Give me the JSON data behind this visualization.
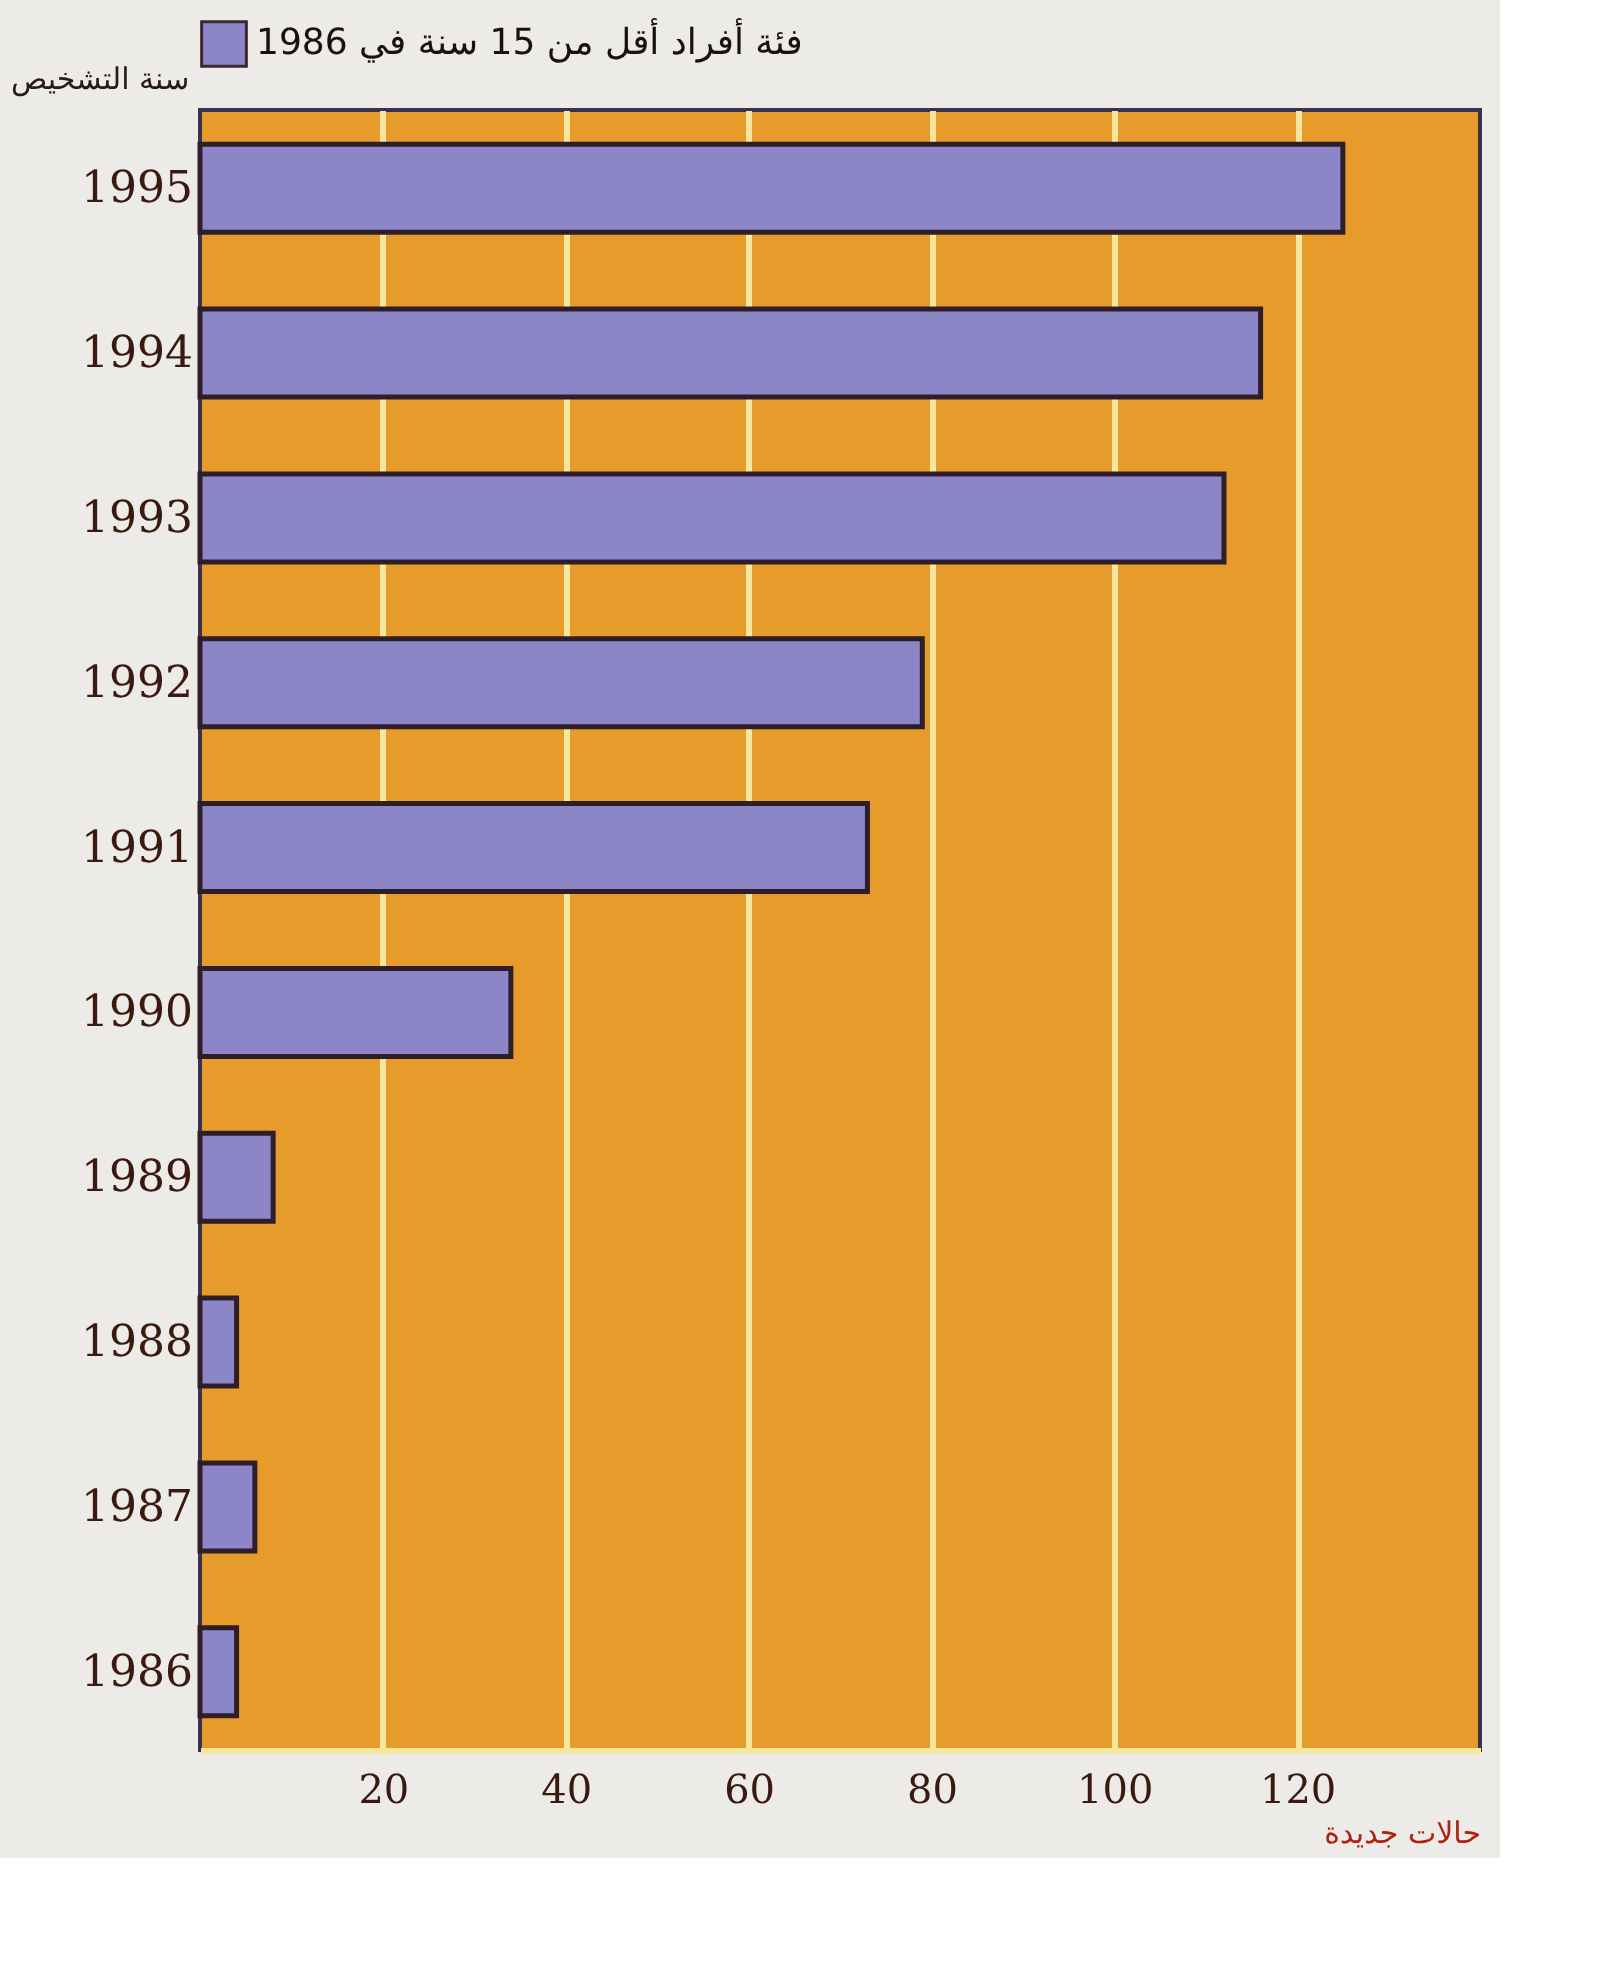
{
  "chart_data": {
    "type": "bar",
    "orientation": "horizontal",
    "ylabel": "سنة التشخيص",
    "xlabel": "حالات جديدة",
    "categories": [
      "1995",
      "1994",
      "1993",
      "1992",
      "1991",
      "1990",
      "1989",
      "1988",
      "1987",
      "1986"
    ],
    "series": [
      {
        "name": "فئة أفراد أقل من 15 سنة في 1986",
        "color": "#8c86c8",
        "values": [
          125,
          116,
          112,
          79,
          73,
          34,
          8,
          4,
          6,
          4
        ]
      }
    ],
    "xlim": [
      0,
      140
    ],
    "xticks": [
      20,
      40,
      60,
      80,
      100,
      120
    ],
    "grid": "x",
    "legend": "top"
  }
}
